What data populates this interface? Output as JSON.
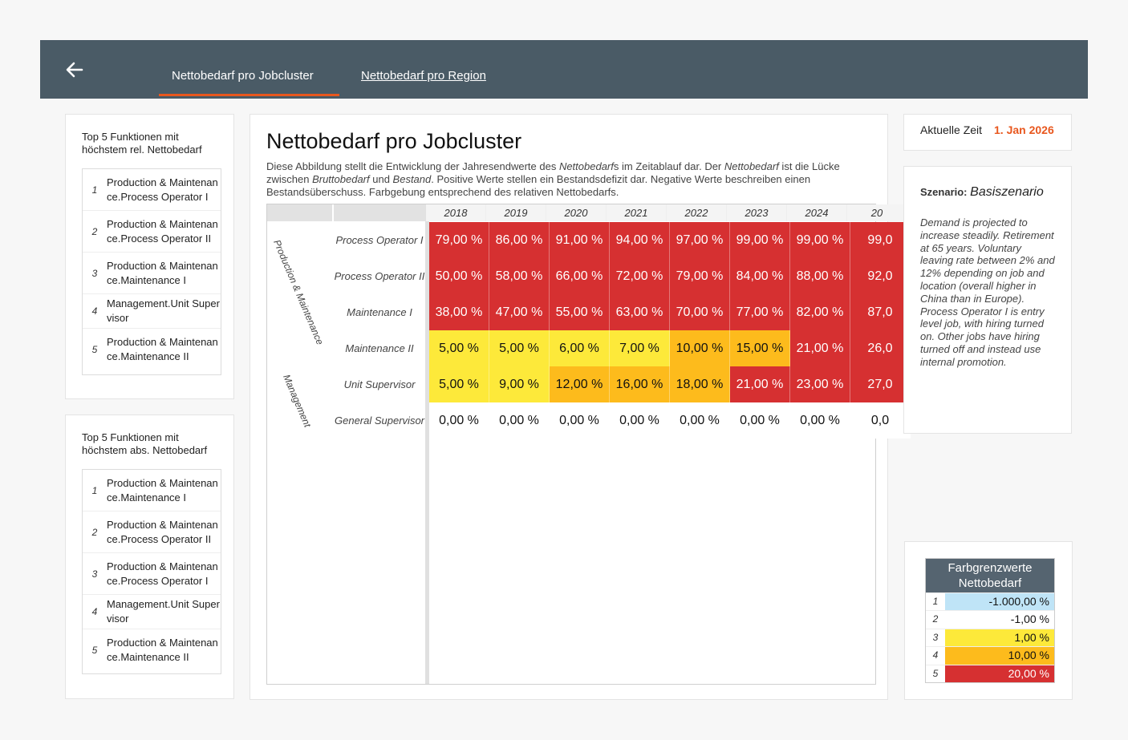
{
  "tabs": [
    {
      "label": "Nettobedarf pro Jobcluster"
    },
    {
      "label": "Nettobedarf pro Region"
    }
  ],
  "rel_panel": {
    "title": "Top 5 Funktionen mit höchstem rel. Nettobedarf",
    "items": [
      {
        "rank": "1",
        "text": "Production & Maintenance.Process Operator I"
      },
      {
        "rank": "2",
        "text": "Production & Maintenance.Process Operator II"
      },
      {
        "rank": "3",
        "text": "Production & Maintenance.Maintenance I"
      },
      {
        "rank": "4",
        "text": "Management.Unit Supervisor"
      },
      {
        "rank": "5",
        "text": "Production & Maintenance.Maintenance II"
      }
    ]
  },
  "abs_panel": {
    "title": "Top 5 Funktionen mit höchstem abs. Nettobedarf",
    "items": [
      {
        "rank": "1",
        "text": "Production & Maintenance.Maintenance I"
      },
      {
        "rank": "2",
        "text": "Production & Maintenance.Process Operator II"
      },
      {
        "rank": "3",
        "text": "Production & Maintenance.Process Operator I"
      },
      {
        "rank": "4",
        "text": "Management.Unit Supervisor"
      },
      {
        "rank": "5",
        "text": "Production & Maintenance.Maintenance II"
      }
    ]
  },
  "main": {
    "title": "Nettobedarf pro Jobcluster",
    "description_parts": [
      {
        "t": "Diese Abbildung stellt die Entwicklung der Jahresendwerte des ",
        "i": false
      },
      {
        "t": "Nettobedarf",
        "i": true
      },
      {
        "t": "s im Zeitablauf dar. Der ",
        "i": false
      },
      {
        "t": "Nettobedarf",
        "i": true
      },
      {
        "t": " ist die Lücke zwischen ",
        "i": false
      },
      {
        "t": "Bruttobedarf",
        "i": true
      },
      {
        "t": " und ",
        "i": false
      },
      {
        "t": "Bestand",
        "i": true
      },
      {
        "t": ". Positive Werte stellen ein Bestandsdefizit dar. Negative Werte beschreiben einen Bestandsüberschuss. Farbgebung entsprechend des relativen Nettobedarfs.",
        "i": false
      }
    ],
    "years": [
      "2018",
      "2019",
      "2020",
      "2021",
      "2022",
      "2023",
      "2024",
      "20"
    ],
    "groups": [
      {
        "name": "Production & Maintenance"
      },
      {
        "name": "Management"
      }
    ],
    "rows": [
      {
        "label": "Process Operator I",
        "values": [
          "79,00 %",
          "86,00 %",
          "91,00 %",
          "94,00 %",
          "97,00 %",
          "99,00 %",
          "99,00 %",
          "99,0"
        ]
      },
      {
        "label": "Process Operator II",
        "values": [
          "50,00 %",
          "58,00 %",
          "66,00 %",
          "72,00 %",
          "79,00 %",
          "84,00 %",
          "88,00 %",
          "92,0"
        ]
      },
      {
        "label": "Maintenance I",
        "values": [
          "38,00 %",
          "47,00 %",
          "55,00 %",
          "63,00 %",
          "70,00 %",
          "77,00 %",
          "82,00 %",
          "87,0"
        ]
      },
      {
        "label": "Maintenance II",
        "values": [
          "5,00 %",
          "5,00 %",
          "6,00 %",
          "7,00 %",
          "10,00 %",
          "15,00 %",
          "21,00 %",
          "26,0"
        ]
      },
      {
        "label": "Unit Supervisor",
        "values": [
          "5,00 %",
          "9,00 %",
          "12,00 %",
          "16,00 %",
          "18,00 %",
          "21,00 %",
          "23,00 %",
          "27,0"
        ]
      },
      {
        "label": "General Supervisor",
        "values": [
          "0,00 %",
          "0,00 %",
          "0,00 %",
          "0,00 %",
          "0,00 %",
          "0,00 %",
          "0,00 %",
          "0,0"
        ]
      }
    ],
    "row_levels": [
      [
        5,
        5,
        5,
        5,
        5,
        5,
        5,
        5
      ],
      [
        5,
        5,
        5,
        5,
        5,
        5,
        5,
        5
      ],
      [
        5,
        5,
        5,
        5,
        5,
        5,
        5,
        5
      ],
      [
        3,
        3,
        3,
        3,
        4,
        4,
        5,
        5
      ],
      [
        3,
        3,
        4,
        4,
        4,
        5,
        5,
        5
      ],
      [
        2,
        2,
        2,
        2,
        2,
        2,
        2,
        2
      ]
    ]
  },
  "time": {
    "label": "Aktuelle Zeit",
    "value": "1. Jan 2026"
  },
  "scenario": {
    "label": "Szenario:",
    "name": "Basiszenario",
    "text": "Demand is projected to increase steadily. Retirement at 65 years. Voluntary leaving rate between 2% and 12% depending on job and location (overall higher in China than in Europe). Process Operator I is entry level job, with hiring turned on. Other jobs have hiring turned off and instead use internal promotion."
  },
  "legend": {
    "title": "Farbgrenzwerte Nettobedarf",
    "rows": [
      {
        "num": "1",
        "value": "-1.000,00 %",
        "color": "#bfe4f7"
      },
      {
        "num": "2",
        "value": "-1,00 %",
        "color": "#ffffff"
      },
      {
        "num": "3",
        "value": "1,00 %",
        "color": "#fde93a"
      },
      {
        "num": "4",
        "value": "10,00 %",
        "color": "#fdbb1c"
      },
      {
        "num": "5",
        "value": "20,00 %",
        "color": "#d63031"
      }
    ]
  },
  "colors": {
    "accent": "#e8571e",
    "header": "#4a5b66"
  }
}
